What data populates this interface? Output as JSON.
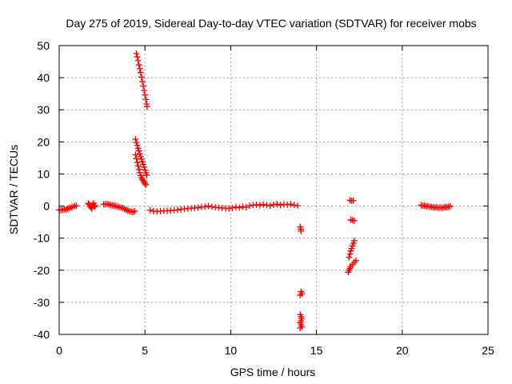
{
  "chart_data": {
    "type": "scatter",
    "title": "Day 275 of 2019, Sidereal Day-to-day VTEC variation (SDTVAR) for receiver mobs",
    "xlabel": "GPS time / hours",
    "ylabel": "SDTVAR / TECUs",
    "xlim": [
      0,
      25
    ],
    "ylim": [
      -40,
      50
    ],
    "xticks": [
      0,
      5,
      10,
      15,
      20,
      25
    ],
    "yticks": [
      -40,
      -30,
      -20,
      -10,
      0,
      10,
      20,
      30,
      40,
      50
    ],
    "xtick_labels": [
      "0",
      "5",
      "10",
      "15",
      "20",
      "25"
    ],
    "ytick_labels": [
      "-40",
      "-30",
      "-20",
      "-10",
      "0",
      "10",
      "20",
      "30",
      "40",
      "50"
    ],
    "grid": true,
    "marker": "plus",
    "series_color": "#ff0000",
    "series": [
      {
        "name": "seg-0-1",
        "points": [
          [
            0.0,
            -1.2
          ],
          [
            0.1,
            -1.3
          ],
          [
            0.2,
            -1.2
          ],
          [
            0.3,
            -1.0
          ],
          [
            0.4,
            -1.1
          ],
          [
            0.5,
            -0.9
          ],
          [
            0.6,
            -0.6
          ],
          [
            0.7,
            -0.4
          ],
          [
            0.8,
            -0.2
          ],
          [
            0.9,
            0.0
          ],
          [
            1.0,
            0.1
          ]
        ]
      },
      {
        "name": "seg-1.7-2.1",
        "points": [
          [
            1.7,
            0.8
          ],
          [
            1.75,
            0.5
          ],
          [
            1.8,
            0.0
          ],
          [
            1.85,
            -0.4
          ],
          [
            1.9,
            -0.8
          ],
          [
            1.95,
            0.3
          ],
          [
            2.0,
            0.9
          ],
          [
            2.05,
            -0.2
          ],
          [
            2.1,
            0.1
          ]
        ]
      },
      {
        "name": "seg-2.6-4.4",
        "points": [
          [
            2.6,
            0.5
          ],
          [
            2.7,
            0.6
          ],
          [
            2.8,
            0.6
          ],
          [
            2.9,
            0.5
          ],
          [
            3.0,
            0.3
          ],
          [
            3.1,
            0.2
          ],
          [
            3.2,
            0.1
          ],
          [
            3.3,
            0.0
          ],
          [
            3.4,
            -0.2
          ],
          [
            3.5,
            -0.4
          ],
          [
            3.6,
            -0.5
          ],
          [
            3.7,
            -0.6
          ],
          [
            3.8,
            -0.9
          ],
          [
            3.9,
            -1.1
          ],
          [
            4.0,
            -1.4
          ],
          [
            4.1,
            -1.6
          ],
          [
            4.2,
            -1.8
          ],
          [
            4.3,
            -1.9
          ],
          [
            4.4,
            -1.6
          ]
        ]
      },
      {
        "name": "spike-high",
        "points": [
          [
            4.5,
            47.5
          ],
          [
            4.55,
            46.5
          ],
          [
            4.6,
            45.3
          ],
          [
            4.65,
            44.0
          ],
          [
            4.7,
            42.8
          ],
          [
            4.75,
            41.6
          ],
          [
            4.8,
            40.2
          ],
          [
            4.85,
            38.8
          ],
          [
            4.9,
            37.4
          ],
          [
            4.95,
            36.0
          ],
          [
            5.0,
            34.6
          ],
          [
            5.05,
            33.2
          ],
          [
            5.1,
            31.8
          ],
          [
            5.12,
            31.0
          ]
        ]
      },
      {
        "name": "spike-mid",
        "points": [
          [
            4.45,
            20.8
          ],
          [
            4.5,
            19.8
          ],
          [
            4.55,
            18.9
          ],
          [
            4.6,
            18.0
          ],
          [
            4.65,
            17.2
          ],
          [
            4.7,
            16.3
          ],
          [
            4.75,
            15.4
          ],
          [
            4.8,
            14.6
          ],
          [
            4.85,
            13.8
          ],
          [
            4.9,
            13.0
          ],
          [
            4.95,
            12.1
          ],
          [
            5.0,
            11.2
          ],
          [
            5.05,
            10.4
          ],
          [
            5.1,
            9.6
          ]
        ]
      },
      {
        "name": "spike-low",
        "points": [
          [
            4.45,
            16.0
          ],
          [
            4.5,
            14.8
          ],
          [
            4.55,
            13.6
          ],
          [
            4.6,
            12.5
          ],
          [
            4.65,
            11.4
          ],
          [
            4.7,
            10.4
          ],
          [
            4.75,
            9.5
          ],
          [
            4.8,
            8.8
          ],
          [
            4.85,
            8.3
          ],
          [
            4.9,
            7.9
          ],
          [
            4.95,
            7.5
          ],
          [
            5.0,
            7.0
          ],
          [
            5.05,
            6.6
          ]
        ]
      },
      {
        "name": "baseline-5.3-13.9",
        "points": [
          [
            5.3,
            -1.3
          ],
          [
            5.5,
            -1.6
          ],
          [
            5.7,
            -1.7
          ],
          [
            5.9,
            -1.6
          ],
          [
            6.1,
            -1.5
          ],
          [
            6.3,
            -1.5
          ],
          [
            6.5,
            -1.4
          ],
          [
            6.7,
            -1.3
          ],
          [
            6.9,
            -1.2
          ],
          [
            7.1,
            -1.0
          ],
          [
            7.3,
            -0.9
          ],
          [
            7.5,
            -0.8
          ],
          [
            7.7,
            -0.7
          ],
          [
            7.9,
            -0.6
          ],
          [
            8.1,
            -0.5
          ],
          [
            8.3,
            -0.3
          ],
          [
            8.5,
            -0.2
          ],
          [
            8.7,
            0.0
          ],
          [
            8.9,
            -0.2
          ],
          [
            9.1,
            -0.4
          ],
          [
            9.3,
            -0.5
          ],
          [
            9.5,
            -0.6
          ],
          [
            9.7,
            -0.7
          ],
          [
            9.9,
            -0.8
          ],
          [
            10.1,
            -0.6
          ],
          [
            10.3,
            -0.3
          ],
          [
            10.5,
            -0.5
          ],
          [
            10.7,
            -0.2
          ],
          [
            10.9,
            -0.4
          ],
          [
            11.1,
            0.1
          ],
          [
            11.3,
            0.3
          ],
          [
            11.5,
            0.4
          ],
          [
            11.7,
            0.2
          ],
          [
            11.9,
            0.5
          ],
          [
            12.1,
            0.3
          ],
          [
            12.3,
            0.1
          ],
          [
            12.5,
            0.4
          ],
          [
            12.7,
            0.6
          ],
          [
            12.9,
            0.3
          ],
          [
            13.1,
            0.5
          ],
          [
            13.3,
            0.4
          ],
          [
            13.5,
            0.6
          ],
          [
            13.7,
            0.3
          ],
          [
            13.9,
            0.1
          ]
        ]
      },
      {
        "name": "drop-14",
        "points": [
          [
            14.05,
            -6.5
          ],
          [
            14.1,
            -7.2
          ],
          [
            14.1,
            -7.8
          ],
          [
            14.1,
            -26.7
          ],
          [
            14.15,
            -27.3
          ],
          [
            14.05,
            -27.8
          ],
          [
            14.05,
            -33.8
          ],
          [
            14.1,
            -34.5
          ],
          [
            14.15,
            -35.1
          ],
          [
            14.1,
            -35.8
          ],
          [
            14.05,
            -36.4
          ],
          [
            14.1,
            -37.0
          ],
          [
            14.15,
            -37.6
          ],
          [
            14.05,
            -38.0
          ]
        ]
      },
      {
        "name": "seg-17",
        "points": [
          [
            16.95,
            1.8
          ],
          [
            17.05,
            1.6
          ],
          [
            17.15,
            1.7
          ],
          [
            17.0,
            -4.3
          ],
          [
            17.1,
            -4.4
          ],
          [
            17.2,
            -4.6
          ],
          [
            16.9,
            -16.0
          ],
          [
            16.95,
            -15.0
          ],
          [
            17.0,
            -14.0
          ],
          [
            17.05,
            -13.2
          ],
          [
            17.1,
            -12.4
          ],
          [
            17.15,
            -11.6
          ],
          [
            17.2,
            -10.8
          ],
          [
            16.85,
            -20.6
          ],
          [
            16.9,
            -20.0
          ],
          [
            16.95,
            -19.4
          ],
          [
            17.0,
            -18.8
          ],
          [
            17.1,
            -18.2
          ],
          [
            17.2,
            -17.5
          ],
          [
            17.3,
            -17.0
          ]
        ]
      },
      {
        "name": "seg-21-22.8",
        "points": [
          [
            21.1,
            0.3
          ],
          [
            21.2,
            0.1
          ],
          [
            21.3,
            0.2
          ],
          [
            21.4,
            -0.1
          ],
          [
            21.5,
            0.0
          ],
          [
            21.6,
            -0.3
          ],
          [
            21.7,
            -0.2
          ],
          [
            21.8,
            -0.4
          ],
          [
            21.9,
            -0.5
          ],
          [
            22.0,
            -0.4
          ],
          [
            22.1,
            -0.6
          ],
          [
            22.2,
            -0.5
          ],
          [
            22.3,
            -0.6
          ],
          [
            22.4,
            -0.5
          ],
          [
            22.5,
            -0.3
          ],
          [
            22.6,
            -0.4
          ],
          [
            22.7,
            -0.2
          ],
          [
            22.8,
            -0.1
          ]
        ]
      }
    ]
  }
}
